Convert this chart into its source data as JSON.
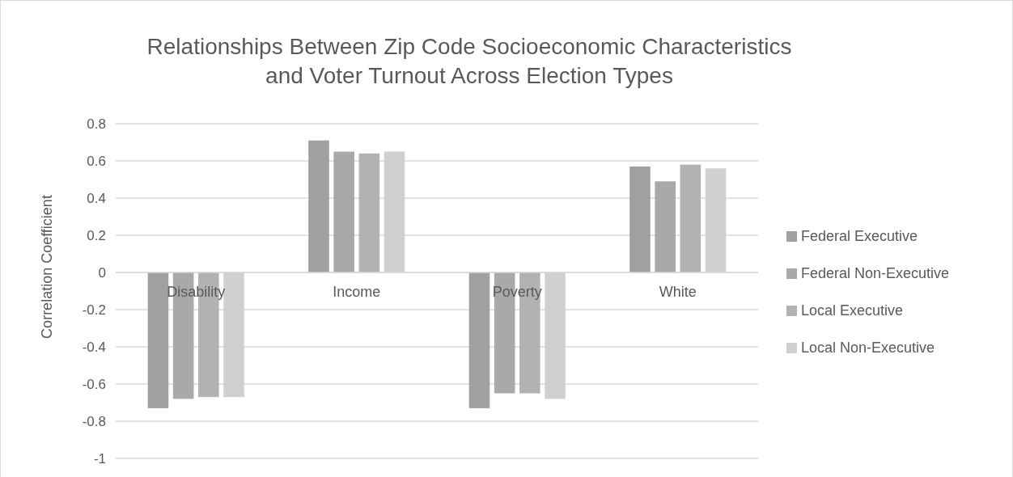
{
  "chart_data": {
    "type": "bar",
    "title": "Relationships Between Zip Code Socioeconomic Characteristics and Voter Turnout Across Election Types",
    "ylabel": "Correlation Coefficient",
    "categories": [
      "Disability",
      "Income",
      "Poverty",
      "White"
    ],
    "series": [
      {
        "name": "Federal Executive",
        "color": "#a0a0a0",
        "values": [
          -0.73,
          0.71,
          -0.73,
          0.57
        ]
      },
      {
        "name": "Federal Non-Executive",
        "color": "#a9a9a9",
        "values": [
          -0.68,
          0.65,
          -0.65,
          0.49
        ]
      },
      {
        "name": "Local Executive",
        "color": "#b2b2b2",
        "values": [
          -0.67,
          0.64,
          -0.65,
          0.58
        ]
      },
      {
        "name": "Local Non-Executive",
        "color": "#d0d0d0",
        "values": [
          -0.67,
          0.65,
          -0.68,
          0.56
        ]
      }
    ],
    "ylim": [
      -1,
      0.8
    ],
    "yticks": [
      -1,
      -0.8,
      -0.6,
      -0.4,
      -0.2,
      0,
      0.2,
      0.4,
      0.6,
      0.8
    ],
    "grid": "y",
    "legend": "right"
  }
}
